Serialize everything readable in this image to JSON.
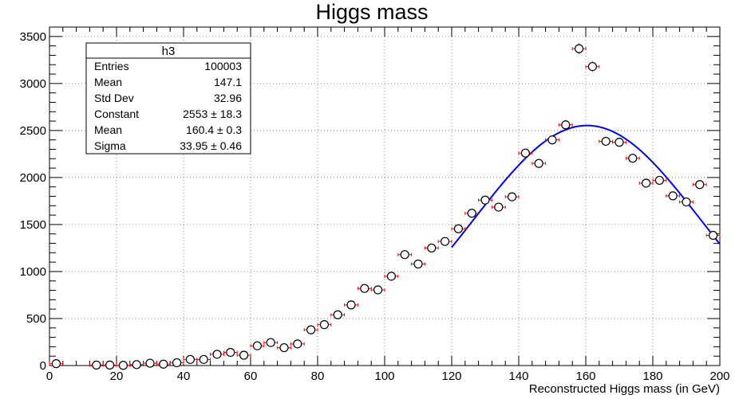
{
  "chart_data": {
    "type": "scatter",
    "title": "Higgs mass",
    "xlabel": "Reconstructed Higgs mass (in GeV)",
    "ylabel": "",
    "xlim": [
      0,
      200
    ],
    "ylim": [
      0,
      3600
    ],
    "grid": true,
    "xticks": [
      0,
      20,
      40,
      60,
      80,
      100,
      120,
      140,
      160,
      180,
      200
    ],
    "yticks": [
      0,
      500,
      1000,
      1500,
      2000,
      2500,
      3000,
      3500
    ],
    "bin_half_width": 2,
    "points": [
      {
        "x": 2,
        "y": 20
      },
      {
        "x": 14,
        "y": 5
      },
      {
        "x": 18,
        "y": 5
      },
      {
        "x": 22,
        "y": 2
      },
      {
        "x": 26,
        "y": 10
      },
      {
        "x": 30,
        "y": 25
      },
      {
        "x": 34,
        "y": 15
      },
      {
        "x": 38,
        "y": 30
      },
      {
        "x": 42,
        "y": 65
      },
      {
        "x": 46,
        "y": 65
      },
      {
        "x": 50,
        "y": 120
      },
      {
        "x": 54,
        "y": 140
      },
      {
        "x": 58,
        "y": 110
      },
      {
        "x": 62,
        "y": 210
      },
      {
        "x": 66,
        "y": 245
      },
      {
        "x": 70,
        "y": 190
      },
      {
        "x": 74,
        "y": 230
      },
      {
        "x": 78,
        "y": 380
      },
      {
        "x": 82,
        "y": 435
      },
      {
        "x": 86,
        "y": 540
      },
      {
        "x": 90,
        "y": 645
      },
      {
        "x": 94,
        "y": 820
      },
      {
        "x": 98,
        "y": 805
      },
      {
        "x": 102,
        "y": 950
      },
      {
        "x": 106,
        "y": 1180
      },
      {
        "x": 110,
        "y": 1080
      },
      {
        "x": 114,
        "y": 1250
      },
      {
        "x": 118,
        "y": 1320
      },
      {
        "x": 122,
        "y": 1455
      },
      {
        "x": 126,
        "y": 1620
      },
      {
        "x": 130,
        "y": 1760
      },
      {
        "x": 134,
        "y": 1685
      },
      {
        "x": 138,
        "y": 1795
      },
      {
        "x": 142,
        "y": 2260
      },
      {
        "x": 146,
        "y": 2150
      },
      {
        "x": 150,
        "y": 2400
      },
      {
        "x": 154,
        "y": 2560
      },
      {
        "x": 158,
        "y": 3370
      },
      {
        "x": 162,
        "y": 3180
      },
      {
        "x": 166,
        "y": 2385
      },
      {
        "x": 170,
        "y": 2375
      },
      {
        "x": 174,
        "y": 2205
      },
      {
        "x": 178,
        "y": 1940
      },
      {
        "x": 182,
        "y": 1970
      },
      {
        "x": 186,
        "y": 1805
      },
      {
        "x": 190,
        "y": 1740
      },
      {
        "x": 194,
        "y": 1925
      },
      {
        "x": 198,
        "y": 1385
      }
    ],
    "fit": {
      "function": "gaus",
      "constant": 2553,
      "mean": 160.4,
      "sigma": 33.95,
      "range": [
        120,
        200
      ],
      "color": "#0000ff"
    },
    "colors": {
      "errorbar": "#ff0000",
      "marker": "#000000"
    }
  },
  "stats_box": {
    "name": "h3",
    "rows": [
      {
        "label": "Entries",
        "value": "100003"
      },
      {
        "label": "Mean",
        "value": "147.1"
      },
      {
        "label": "Std Dev",
        "value": "32.96"
      },
      {
        "label": "Constant",
        "value": "2553 ± 18.3"
      },
      {
        "label": "Mean",
        "value": "160.4 ± 0.3"
      },
      {
        "label": "Sigma",
        "value": "33.95 ± 0.46"
      }
    ]
  }
}
